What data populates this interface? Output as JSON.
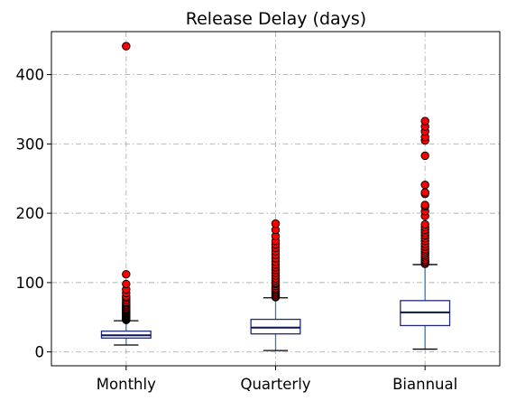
{
  "chart_data": {
    "type": "box",
    "title": "Release Delay (days)",
    "xlabel": "",
    "ylabel": "",
    "categories": [
      "Monthly",
      "Quarterly",
      "Biannual"
    ],
    "ylim": [
      -20,
      462
    ],
    "yticks": [
      0,
      100,
      200,
      300,
      400
    ],
    "grid": true,
    "colors": {
      "box": "#1f2a7a",
      "median": "#0a1450",
      "whisker": "#2e7bc4",
      "cap": "#000000",
      "flier_fill": "#ff0000",
      "flier_edge": "#000000",
      "grid": "#b0b0b0"
    },
    "boxes": [
      {
        "name": "Monthly",
        "whisker_low": 10,
        "q1": 20,
        "median": 24,
        "q3": 30,
        "whisker_high": 45,
        "outliers": [
          46,
          47,
          48,
          49,
          50,
          51,
          52,
          53,
          54,
          55,
          56,
          57,
          58,
          59,
          60,
          61,
          62,
          63,
          65,
          67,
          68,
          70,
          72,
          75,
          78,
          80,
          85,
          90,
          98,
          112,
          441
        ]
      },
      {
        "name": "Quarterly",
        "whisker_low": 2,
        "q1": 26,
        "median": 35,
        "q3": 47,
        "whisker_high": 78,
        "outliers": [
          79,
          80,
          82,
          84,
          86,
          88,
          90,
          92,
          95,
          98,
          100,
          103,
          106,
          110,
          114,
          118,
          122,
          126,
          130,
          135,
          140,
          145,
          150,
          155,
          160,
          167,
          176,
          185
        ]
      },
      {
        "name": "Biannual",
        "whisker_low": 4,
        "q1": 38,
        "median": 57,
        "q3": 74,
        "whisker_high": 126,
        "outliers": [
          127,
          129,
          131,
          133,
          136,
          139,
          142,
          145,
          148,
          152,
          156,
          160,
          164,
          168,
          172,
          176,
          180,
          184,
          196,
          203,
          210,
          212,
          228,
          230,
          241,
          283,
          305,
          310,
          318,
          325,
          333
        ]
      }
    ]
  }
}
